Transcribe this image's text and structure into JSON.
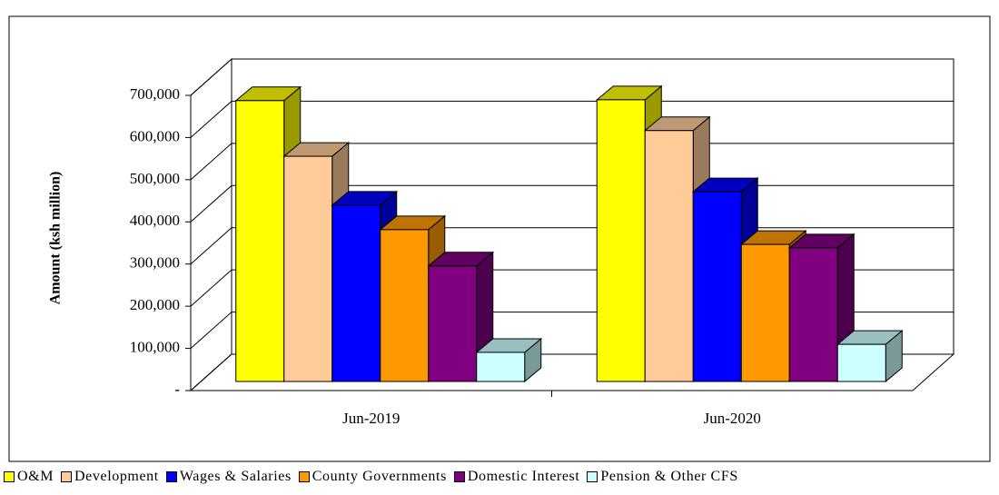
{
  "chart_data": {
    "type": "bar",
    "y_label": "Amount  (ksh million)",
    "categories": [
      "Jun-2019",
      "Jun-2020"
    ],
    "series": [
      {
        "name": "O&M",
        "color": "#ffff00",
        "values": [
          666000,
          668000
        ]
      },
      {
        "name": "Development",
        "color": "#ffcc99",
        "values": [
          534000,
          595000
        ]
      },
      {
        "name": "Wages & Salaries",
        "color": "#0000ff",
        "values": [
          418000,
          450000
        ]
      },
      {
        "name": "County Governments",
        "color": "#ff9900",
        "values": [
          360000,
          325000
        ]
      },
      {
        "name": "Domestic Interest",
        "color": "#800080",
        "values": [
          274000,
          317000
        ]
      },
      {
        "name": "Pension & Other CFS",
        "color": "#ccffff",
        "values": [
          69000,
          88000
        ]
      }
    ],
    "ylim": [
      0,
      700000
    ],
    "yticks": [
      {
        "value": 0,
        "label": "-"
      },
      {
        "value": 100000,
        "label": "100,000"
      },
      {
        "value": 200000,
        "label": "200,000"
      },
      {
        "value": 300000,
        "label": "300,000"
      },
      {
        "value": 400000,
        "label": "400,000"
      },
      {
        "value": 500000,
        "label": "500,000"
      },
      {
        "value": 600000,
        "label": "600,000"
      },
      {
        "value": 700000,
        "label": "700,000"
      }
    ],
    "grid": true,
    "legend": "bottom"
  }
}
